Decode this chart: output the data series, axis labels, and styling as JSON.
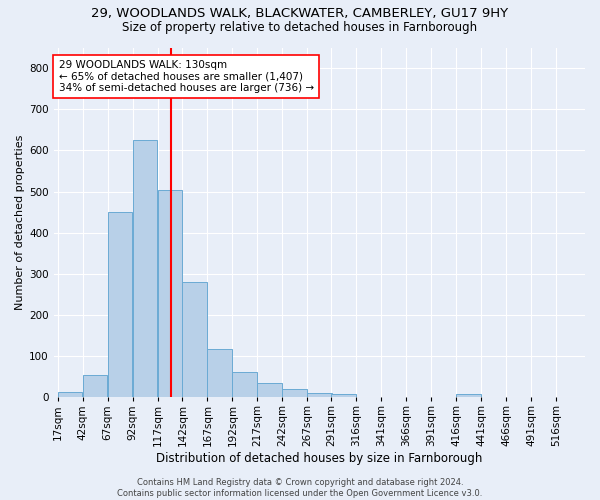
{
  "title_line1": "29, WOODLANDS WALK, BLACKWATER, CAMBERLEY, GU17 9HY",
  "title_line2": "Size of property relative to detached houses in Farnborough",
  "xlabel": "Distribution of detached houses by size in Farnborough",
  "ylabel": "Number of detached properties",
  "bar_color": "#b8d0e8",
  "bar_edge_color": "#6aaad4",
  "vline_x": 130,
  "vline_color": "red",
  "annotation_text": "29 WOODLANDS WALK: 130sqm\n← 65% of detached houses are smaller (1,407)\n34% of semi-detached houses are larger (736) →",
  "annotation_box_color": "white",
  "annotation_box_edge": "red",
  "footer": "Contains HM Land Registry data © Crown copyright and database right 2024.\nContains public sector information licensed under the Open Government Licence v3.0.",
  "bins_left": [
    17,
    42,
    67,
    92,
    117,
    142,
    167,
    192,
    217,
    242,
    267,
    291,
    316,
    341,
    366,
    391,
    416,
    441,
    466,
    491,
    516
  ],
  "bin_width": 25,
  "counts": [
    12,
    55,
    450,
    625,
    505,
    280,
    118,
    62,
    35,
    20,
    10,
    8,
    0,
    0,
    0,
    0,
    8,
    0,
    0,
    0,
    0
  ],
  "ylim": [
    0,
    850
  ],
  "yticks": [
    0,
    100,
    200,
    300,
    400,
    500,
    600,
    700,
    800
  ],
  "background_color": "#e8eef8",
  "grid_color": "#ffffff",
  "title_fontsize": 9.5,
  "subtitle_fontsize": 8.5,
  "axis_label_fontsize": 8,
  "tick_fontsize": 7.5,
  "annotation_fontsize": 7.5,
  "footer_fontsize": 6
}
